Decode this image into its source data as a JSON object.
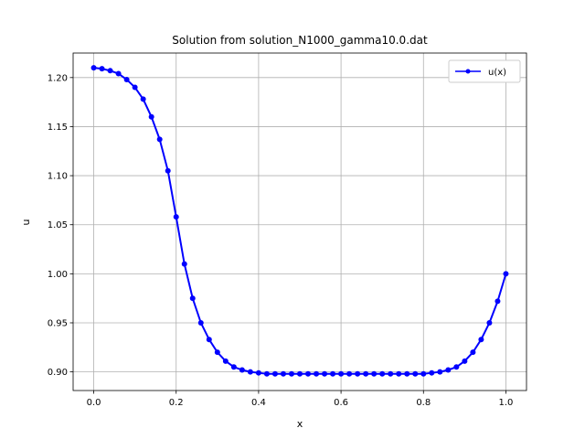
{
  "chart_data": {
    "type": "line",
    "title": "Solution from solution_N1000_gamma10.0.dat",
    "xlabel": "x",
    "ylabel": "u",
    "xlim": [
      -0.05,
      1.05
    ],
    "ylim": [
      0.881,
      1.225
    ],
    "xticks": [
      0.0,
      0.2,
      0.4,
      0.6,
      0.8,
      1.0
    ],
    "xtick_labels": [
      "0.0",
      "0.2",
      "0.4",
      "0.6",
      "0.8",
      "1.0"
    ],
    "yticks": [
      0.9,
      0.95,
      1.0,
      1.05,
      1.1,
      1.15,
      1.2
    ],
    "ytick_labels": [
      "0.90",
      "0.95",
      "1.00",
      "1.05",
      "1.10",
      "1.15",
      "1.20"
    ],
    "grid": true,
    "legend": "upper right",
    "series": [
      {
        "name": "u(x)",
        "color": "#0000ff",
        "marker": "circle",
        "x": [
          0.0,
          0.02,
          0.04,
          0.06,
          0.08,
          0.1,
          0.12,
          0.14,
          0.16,
          0.18,
          0.2,
          0.22,
          0.24,
          0.26,
          0.28,
          0.3,
          0.32,
          0.34,
          0.36,
          0.38,
          0.4,
          0.42,
          0.44,
          0.46,
          0.48,
          0.5,
          0.52,
          0.54,
          0.56,
          0.58,
          0.6,
          0.62,
          0.64,
          0.66,
          0.68,
          0.7,
          0.72,
          0.74,
          0.76,
          0.78,
          0.8,
          0.82,
          0.84,
          0.86,
          0.88,
          0.9,
          0.92,
          0.94,
          0.96,
          0.98,
          1.0
        ],
        "y": [
          1.21,
          1.209,
          1.207,
          1.204,
          1.198,
          1.19,
          1.178,
          1.16,
          1.137,
          1.105,
          1.058,
          1.01,
          0.975,
          0.95,
          0.933,
          0.92,
          0.911,
          0.905,
          0.902,
          0.9,
          0.899,
          0.898,
          0.898,
          0.898,
          0.898,
          0.898,
          0.898,
          0.898,
          0.898,
          0.898,
          0.898,
          0.898,
          0.898,
          0.898,
          0.898,
          0.898,
          0.898,
          0.898,
          0.898,
          0.898,
          0.898,
          0.899,
          0.9,
          0.902,
          0.905,
          0.911,
          0.92,
          0.933,
          0.95,
          0.972,
          1.0
        ]
      }
    ]
  }
}
